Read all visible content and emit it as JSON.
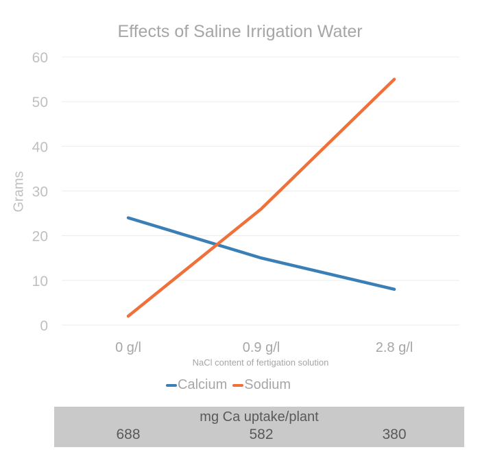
{
  "chart_data": {
    "type": "line",
    "title": "Effects of Saline Irrigation Water",
    "xlabel": "NaCl content of fertigation solution",
    "ylabel": "Grams",
    "categories": [
      "0 g/l",
      "0.9 g/l",
      "2.8 g/l"
    ],
    "ylim": [
      0,
      60
    ],
    "yticks": [
      0,
      10,
      20,
      30,
      40,
      50,
      60
    ],
    "grid": true,
    "legend_position": "bottom",
    "series": [
      {
        "name": "Calcium",
        "values": [
          24,
          15,
          8
        ],
        "color": "#3a7fb6"
      },
      {
        "name": "Sodium",
        "values": [
          2,
          26,
          55
        ],
        "color": "#f0703a"
      }
    ]
  },
  "table": {
    "header": "mg Ca uptake/plant",
    "values": [
      "688",
      "582",
      "380"
    ]
  }
}
